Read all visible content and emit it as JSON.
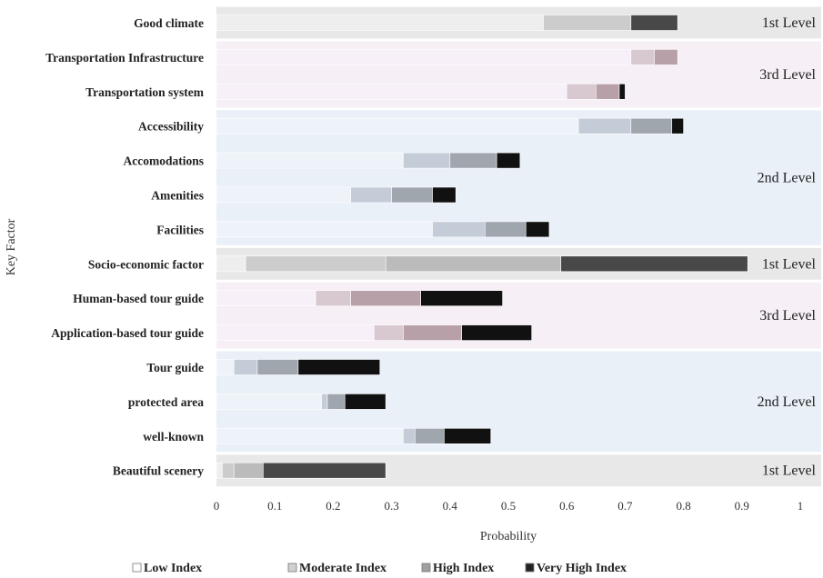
{
  "chart_data": {
    "type": "bar",
    "orientation": "horizontal",
    "stacked": true,
    "xlabel": "Probability",
    "ylabel": "Key Factor",
    "xlim": [
      0,
      1
    ],
    "x_ticks": [
      "0",
      "0.1",
      "0.2",
      "0.3",
      "0.4",
      "0.5",
      "0.6",
      "0.7",
      "0.8",
      "0.9",
      "1"
    ],
    "legend_position": "bottom",
    "categories": [
      "Good climate",
      "Transportation Infrastructure",
      "Transportation system",
      "Accessibility",
      "Accomodations",
      "Amenities",
      "Facilities",
      "Socio-economic factor",
      "Human-based tour guide",
      "Application-based tour guide",
      "Tour guide",
      "protected area",
      "well-known",
      "Beautiful scenery"
    ],
    "category_labels_display": [
      "Good climate",
      "Transportation Infrastructure",
      "Transportation system",
      "Accessibility ",
      "Accomodations",
      "Amenities ",
      "Facilities",
      "Socio-economic factor",
      "Human-based tour guide",
      "Application-based tour guide",
      "Tour guide",
      "protected area",
      "well-known",
      "Beautiful scenery"
    ],
    "series": [
      {
        "name": "Low Index",
        "values": [
          0.56,
          0.71,
          0.6,
          0.62,
          0.32,
          0.23,
          0.37,
          0.05,
          0.17,
          0.27,
          0.03,
          0.18,
          0.32,
          0.01
        ]
      },
      {
        "name": "Moderate Index",
        "values": [
          0.15,
          0.04,
          0.05,
          0.09,
          0.08,
          0.07,
          0.09,
          0.24,
          0.06,
          0.05,
          0.04,
          0.01,
          0.02,
          0.02
        ]
      },
      {
        "name": "High Index",
        "values": [
          0.0,
          0.04,
          0.04,
          0.07,
          0.08,
          0.07,
          0.07,
          0.3,
          0.12,
          0.1,
          0.07,
          0.03,
          0.05,
          0.05
        ]
      },
      {
        "name": "Very High Index",
        "values": [
          0.08,
          0.0,
          0.01,
          0.02,
          0.04,
          0.04,
          0.04,
          0.32,
          0.14,
          0.12,
          0.14,
          0.07,
          0.08,
          0.21
        ]
      }
    ],
    "levels": [
      {
        "label": "1st Level",
        "start": 0,
        "end": 0,
        "shade": "gray"
      },
      {
        "label": "3rd Level",
        "start": 1,
        "end": 2,
        "shade": "pink"
      },
      {
        "label": "2nd Level",
        "start": 3,
        "end": 6,
        "shade": "blue"
      },
      {
        "label": "1st Level",
        "start": 7,
        "end": 7,
        "shade": "gray"
      },
      {
        "label": "3rd Level",
        "start": 8,
        "end": 9,
        "shade": "pink"
      },
      {
        "label": "2nd Level",
        "start": 10,
        "end": 12,
        "shade": "blue"
      },
      {
        "label": "1st Level",
        "start": 13,
        "end": 13,
        "shade": "gray"
      }
    ],
    "colors": {
      "band_gray": "#e8e8e8",
      "band_pink": "#f6eff6",
      "band_blue": "#e9f0f8",
      "gray_series": [
        "#eeeeee",
        "#cccccc",
        "#bbbbbb",
        "#484848"
      ],
      "pink_series": [
        "#f8f0f8",
        "#d8c8d0",
        "#b8a0a8",
        "#111111"
      ],
      "blue_series": [
        "#eef3fa",
        "#c4ccd8",
        "#a0a6ae",
        "#111111"
      ],
      "legend_series": [
        "#ffffff",
        "#d0d0d0",
        "#a0a0a0",
        "#222222"
      ]
    }
  }
}
